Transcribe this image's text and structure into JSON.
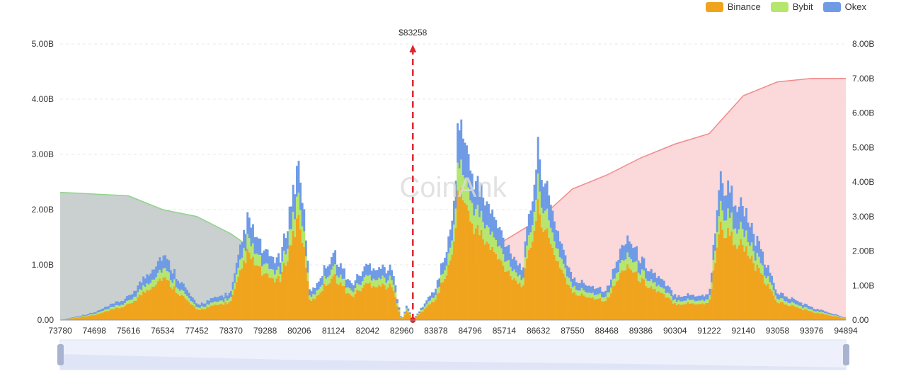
{
  "legend": {
    "items": [
      {
        "label": "Binance",
        "color": "#f0a41e"
      },
      {
        "label": "Bybit",
        "color": "#b5e66e"
      },
      {
        "label": "Okex",
        "color": "#6f9be6"
      }
    ]
  },
  "watermark": {
    "text": "CoinAnk"
  },
  "colors": {
    "binance": "#f0a41e",
    "bybit": "#b5e66e",
    "okex": "#6f9be6",
    "short_cumulative_fill": "#c6cdcc",
    "short_cumulative_line": "#8fd48a",
    "long_cumulative_fill": "#fbd6d8",
    "long_cumulative_line": "#f28a8a",
    "current_price_line": "#e0262e",
    "grid": "#e9e9e9"
  },
  "chart_data": {
    "type": "bar",
    "current_price": {
      "label": "$83258",
      "value": 83258
    },
    "x_ticks": [
      "73780",
      "74698",
      "75616",
      "76534",
      "77452",
      "78370",
      "79288",
      "80206",
      "81124",
      "82042",
      "82960",
      "83878",
      "84796",
      "85714",
      "86632",
      "87550",
      "88468",
      "89386",
      "90304",
      "91222",
      "92140",
      "93058",
      "93976",
      "94894"
    ],
    "xlim": [
      73780,
      94894
    ],
    "y_left": {
      "ticks": [
        "0.00",
        "1.00B",
        "2.00B",
        "3.00B",
        "4.00B",
        "5.00B"
      ],
      "range": [
        0,
        5.0
      ],
      "unit": "B"
    },
    "y_right": {
      "ticks": [
        "0.00",
        "1.00B",
        "2.00B",
        "3.00B",
        "4.00B",
        "5.00B",
        "6.00B",
        "7.00B",
        "8.00B"
      ],
      "range": [
        0,
        8.0
      ],
      "unit": "B"
    },
    "series_profile": {
      "x": [
        73780,
        74698,
        75616,
        76534,
        77452,
        78370,
        78800,
        79288,
        79700,
        80206,
        80500,
        81124,
        81600,
        82042,
        82700,
        82960,
        83100,
        83258,
        83878,
        84300,
        84500,
        84796,
        85714,
        86200,
        86632,
        86900,
        87550,
        88468,
        89000,
        89386,
        90304,
        91222,
        91500,
        92140,
        93058,
        93976,
        94894
      ],
      "total": [
        0.0,
        0.15,
        0.45,
        1.3,
        0.3,
        0.55,
        2.0,
        1.3,
        1.2,
        3.2,
        0.5,
        1.35,
        0.7,
        1.1,
        1.0,
        0.0,
        0.3,
        0.0,
        0.65,
        1.8,
        4.1,
        3.0,
        1.6,
        1.0,
        3.4,
        2.4,
        0.8,
        0.6,
        1.7,
        1.2,
        0.5,
        0.5,
        2.8,
        2.2,
        0.55,
        0.25,
        0.05
      ],
      "binance_share": 0.66,
      "bybit_share": 0.14
    },
    "short_cumulative": {
      "x": [
        73780,
        75616,
        76534,
        77452,
        78370,
        79288,
        80206,
        81124,
        82042,
        82960
      ],
      "y": [
        3.7,
        3.6,
        3.2,
        3.0,
        2.5,
        1.8,
        1.0,
        0.5,
        0.2,
        0.0
      ]
    },
    "long_cumulative": {
      "x": [
        83258,
        84300,
        84796,
        85714,
        86632,
        87550,
        88468,
        89386,
        90304,
        91222,
        92140,
        93058,
        93976,
        94894
      ],
      "y": [
        0.0,
        0.8,
        1.5,
        2.3,
        2.9,
        3.8,
        4.2,
        4.7,
        5.1,
        5.4,
        6.5,
        6.9,
        7.0,
        7.0
      ]
    },
    "grid": true,
    "legend_position": "top-right"
  }
}
